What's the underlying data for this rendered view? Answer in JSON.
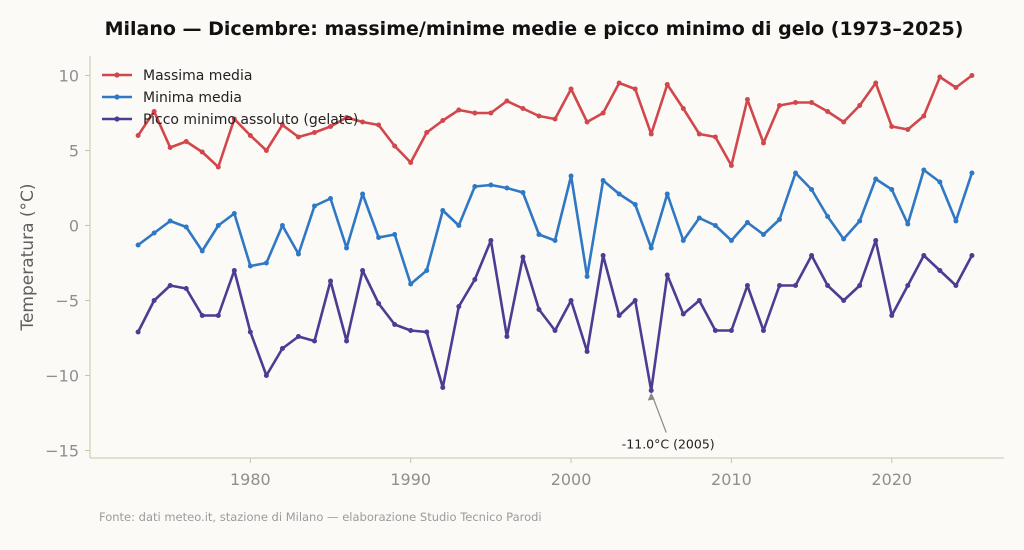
{
  "chart_data": {
    "type": "line",
    "title": "Milano — Dicembre: massime/minime medie e picco minimo di gelo (1973–2025)",
    "xlabel": "",
    "ylabel": "Temperatura (°C)",
    "xlim": [
      1970,
      2027
    ],
    "ylim": [
      -15.5,
      11.3
    ],
    "xticks": [
      1980,
      1990,
      2000,
      2010,
      2020
    ],
    "yticks": [
      -15,
      -10,
      -5,
      0,
      5,
      10
    ],
    "grid": false,
    "legend_position": "top-left",
    "x": [
      1973,
      1974,
      1975,
      1976,
      1977,
      1978,
      1979,
      1980,
      1981,
      1982,
      1983,
      1984,
      1985,
      1986,
      1987,
      1988,
      1989,
      1990,
      1991,
      1992,
      1993,
      1994,
      1995,
      1996,
      1997,
      1998,
      1999,
      2000,
      2001,
      2002,
      2003,
      2004,
      2005,
      2006,
      2007,
      2008,
      2009,
      2010,
      2011,
      2012,
      2013,
      2014,
      2015,
      2016,
      2017,
      2018,
      2019,
      2020,
      2021,
      2022,
      2023,
      2024,
      2025
    ],
    "series": [
      {
        "name": "Massima media",
        "color": "#d1474b",
        "values": [
          6.0,
          7.6,
          5.2,
          5.6,
          4.9,
          3.9,
          7.1,
          6.0,
          5.0,
          6.7,
          5.9,
          6.2,
          6.6,
          7.2,
          6.9,
          6.7,
          5.3,
          4.2,
          6.2,
          7.0,
          7.7,
          7.5,
          7.5,
          8.3,
          7.8,
          7.3,
          7.1,
          9.1,
          6.9,
          7.5,
          9.5,
          9.1,
          6.1,
          9.4,
          7.8,
          6.1,
          5.9,
          4.0,
          8.4,
          5.5,
          8.0,
          8.2,
          8.2,
          7.6,
          6.9,
          8.0,
          9.5,
          6.6,
          6.4,
          7.3,
          9.9,
          9.2,
          10.0
        ]
      },
      {
        "name": "Minima media",
        "color": "#2f78c4",
        "values": [
          -1.3,
          -0.5,
          0.3,
          -0.1,
          -1.7,
          0.0,
          0.8,
          -2.7,
          -2.5,
          0.0,
          -1.9,
          1.3,
          1.8,
          -1.5,
          2.1,
          -0.8,
          -0.6,
          -3.9,
          -3.0,
          1.0,
          0.0,
          2.6,
          2.7,
          2.5,
          2.2,
          -0.6,
          -1.0,
          3.3,
          -3.4,
          3.0,
          2.1,
          1.4,
          -1.5,
          2.1,
          -1.0,
          0.5,
          0.0,
          -1.0,
          0.2,
          -0.6,
          0.4,
          3.5,
          2.4,
          0.6,
          -0.9,
          0.3,
          3.1,
          2.4,
          0.1,
          3.7,
          2.9,
          0.3,
          3.5
        ]
      },
      {
        "name": "Picco minimo assoluto (gelate)",
        "color": "#4f3b92",
        "values": [
          -7.1,
          -5.0,
          -4.0,
          -4.2,
          -6.0,
          -6.0,
          -3.0,
          -7.1,
          -10.0,
          -8.2,
          -7.4,
          -7.7,
          -3.7,
          -7.7,
          -3.0,
          -5.2,
          -6.6,
          -7.0,
          -7.1,
          -10.8,
          -5.4,
          -3.6,
          -1.0,
          -7.4,
          -2.1,
          -5.6,
          -7.0,
          -5.0,
          -8.4,
          -2.0,
          -6.0,
          -5.0,
          -11.0,
          -3.3,
          -5.9,
          -5.0,
          -7.0,
          -7.0,
          -4.0,
          -7.0,
          -4.0,
          -4.0,
          -2.0,
          -4.0,
          -5.0,
          -4.0,
          -1.0,
          -6.0,
          -4.0,
          -2.0,
          -3.0,
          -4.0,
          -2.0
        ]
      }
    ],
    "annotation": {
      "text": "-11.0°C (2005)",
      "x": 2005,
      "y": -11.0
    },
    "source": "Fonte: dati meteo.it, stazione di Milano — elaborazione Studio Tecnico Parodi"
  }
}
